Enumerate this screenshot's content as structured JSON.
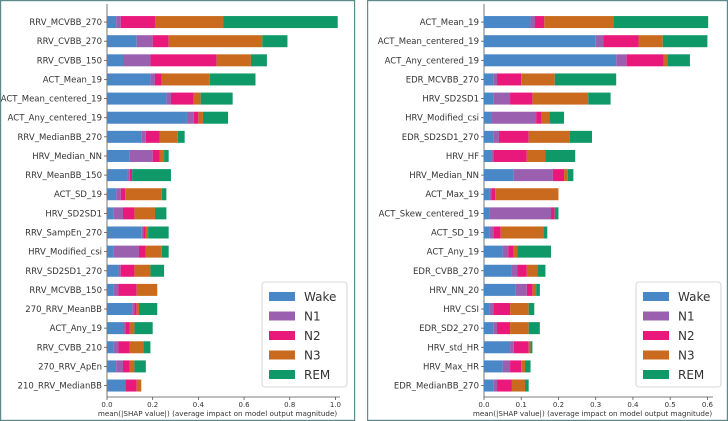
{
  "colors": {
    "Wake": "#4a87c7",
    "N1": "#9b5fb0",
    "N2": "#e8197a",
    "N3": "#c96a1e",
    "REM": "#0f9868",
    "frame": "#5d8a8a",
    "axis": "#555555"
  },
  "chart_data": [
    {
      "type": "bar",
      "orientation": "horizontal-stacked",
      "xlabel": "mean(|SHAP value|) (average impact on model output magnitude)",
      "xlim": [
        0,
        1.02
      ],
      "xticks": [
        "0.0",
        "0.2",
        "0.4",
        "0.6",
        "0.8",
        "1.0"
      ],
      "xtick_values": [
        0,
        0.2,
        0.4,
        0.6,
        0.8,
        1.0
      ],
      "legend": [
        "Wake",
        "N1",
        "N2",
        "N3",
        "REM"
      ],
      "legend_position": "lower-right",
      "categories": [
        "RRV_MCVBB_270",
        "RRV_CVBB_270",
        "RRV_CVBB_150",
        "ACT_Mean_19",
        "ACT_Mean_centered_19",
        "ACT_Any_centered_19",
        "RRV_MedianBB_270",
        "HRV_Median_NN",
        "RRV_MeanBB_150",
        "ACT_SD_19",
        "HRV_SD2SD1",
        "RRV_SampEn_270",
        "HRV_Modified_csi",
        "RRV_SD2SD1_270",
        "RRV_MCVBB_150",
        "270_RRV_MeanBB",
        "ACT_Any_19",
        "RRV_CVBB_210",
        "270_RRV_ApEn",
        "210_RRV_MedianBB"
      ],
      "series": [
        {
          "name": "Wake",
          "values": [
            0.04,
            0.13,
            0.07,
            0.19,
            0.26,
            0.35,
            0.15,
            0.1,
            0.09,
            0.04,
            0.03,
            0.15,
            0.03,
            0.05,
            0.03,
            0.11,
            0.07,
            0.03,
            0.04,
            0.08
          ]
        },
        {
          "name": "N1",
          "values": [
            0.02,
            0.07,
            0.12,
            0.02,
            0.02,
            0.03,
            0.02,
            0.1,
            0.01,
            0.02,
            0.04,
            0.01,
            0.11,
            0.01,
            0.02,
            0.01,
            0.01,
            0.02,
            0.03,
            0.0
          ]
        },
        {
          "name": "N2",
          "values": [
            0.15,
            0.07,
            0.29,
            0.03,
            0.1,
            0.02,
            0.06,
            0.03,
            0.01,
            0.02,
            0.05,
            0.01,
            0.03,
            0.06,
            0.08,
            0.01,
            0.02,
            0.05,
            0.03,
            0.05
          ]
        },
        {
          "name": "N3",
          "values": [
            0.3,
            0.41,
            0.15,
            0.21,
            0.03,
            0.02,
            0.08,
            0.02,
            0.0,
            0.16,
            0.09,
            0.01,
            0.07,
            0.07,
            0.09,
            0.01,
            0.02,
            0.06,
            0.02,
            0.02
          ]
        },
        {
          "name": "REM",
          "values": [
            0.5,
            0.11,
            0.07,
            0.2,
            0.14,
            0.11,
            0.03,
            0.02,
            0.17,
            0.02,
            0.05,
            0.09,
            0.03,
            0.06,
            0.0,
            0.08,
            0.08,
            0.03,
            0.05,
            0.0
          ]
        }
      ]
    },
    {
      "type": "bar",
      "orientation": "horizontal-stacked",
      "xlabel": "mean(|SHAP value|) (average impact on model output magnitude)",
      "xlim": [
        0,
        0.615
      ],
      "xticks": [
        "0.0",
        "0.1",
        "0.2",
        "0.3",
        "0.4",
        "0.5",
        "0.6"
      ],
      "xtick_values": [
        0,
        0.1,
        0.2,
        0.3,
        0.4,
        0.5,
        0.6
      ],
      "legend": [
        "Wake",
        "N1",
        "N2",
        "N3",
        "REM"
      ],
      "legend_position": "lower-right",
      "categories": [
        "ACT_Mean_19",
        "ACT_Mean_centered_19",
        "ACT_Any_centered_19",
        "EDR_MCVBB_270",
        "HRV_SD2SD1",
        "HRV_Modified_csi",
        "EDR_SD2SD1_270",
        "HRV_HF",
        "HRV_Median_NN",
        "ACT_Max_19",
        "ACT_Skew_centered_19",
        "ACT_SD_19",
        "ACT_Any_19",
        "EDR_CVBB_270",
        "HRV_NN_20",
        "HRV_CSI",
        "EDR_SD2_270",
        "HRV_std_HR",
        "HRV_Max_HR",
        "EDR_MedianBB_270"
      ],
      "series": [
        {
          "name": "Wake",
          "values": [
            0.125,
            0.3,
            0.355,
            0.025,
            0.025,
            0.02,
            0.025,
            0.02,
            0.08,
            0.015,
            0.015,
            0.015,
            0.05,
            0.075,
            0.085,
            0.015,
            0.025,
            0.07,
            0.05,
            0.025
          ]
        },
        {
          "name": "N1",
          "values": [
            0.012,
            0.02,
            0.028,
            0.01,
            0.045,
            0.12,
            0.015,
            0.005,
            0.105,
            0.005,
            0.165,
            0.01,
            0.015,
            0.015,
            0.03,
            0.01,
            0.01,
            0.01,
            0.02,
            0.01
          ]
        },
        {
          "name": "N2",
          "values": [
            0.025,
            0.095,
            0.1,
            0.065,
            0.06,
            0.015,
            0.08,
            0.09,
            0.03,
            0.01,
            0.01,
            0.02,
            0.015,
            0.025,
            0.015,
            0.045,
            0.035,
            0.04,
            0.03,
            0.04
          ]
        },
        {
          "name": "N3",
          "values": [
            0.185,
            0.065,
            0.01,
            0.09,
            0.15,
            0.02,
            0.11,
            0.05,
            0.01,
            0.17,
            0.0,
            0.115,
            0.01,
            0.03,
            0.01,
            0.05,
            0.05,
            0.005,
            0.01,
            0.035
          ]
        },
        {
          "name": "REM",
          "values": [
            0.255,
            0.12,
            0.06,
            0.165,
            0.06,
            0.04,
            0.06,
            0.08,
            0.015,
            0.0,
            0.01,
            0.01,
            0.09,
            0.02,
            0.01,
            0.015,
            0.03,
            0.005,
            0.015,
            0.01
          ]
        }
      ]
    }
  ]
}
